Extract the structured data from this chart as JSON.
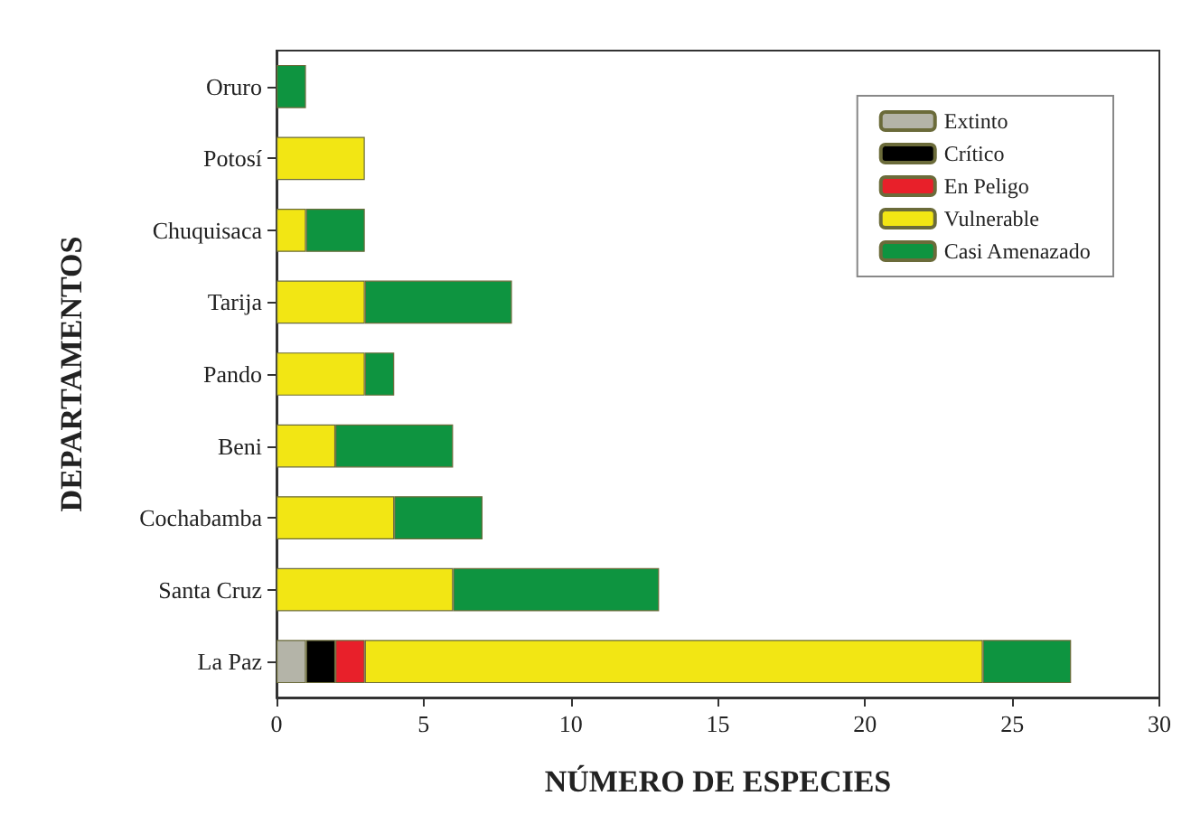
{
  "chart_data": {
    "type": "bar",
    "orientation": "horizontal",
    "stacked": true,
    "xlabel": "NÚMERO DE ESPECIES",
    "ylabel": "DEPARTAMENTOS",
    "categories": [
      "Oruro",
      "Potosí",
      "Chuquisaca",
      "Tarija",
      "Pando",
      "Beni",
      "Cochabamba",
      "Santa Cruz",
      "La Paz"
    ],
    "series": [
      {
        "name": "Extinto",
        "color": "#b4b4a8",
        "values": [
          null,
          null,
          null,
          null,
          null,
          null,
          null,
          null,
          1
        ]
      },
      {
        "name": "Crítico",
        "color": "#000000",
        "values": [
          null,
          null,
          null,
          null,
          null,
          null,
          null,
          null,
          1
        ]
      },
      {
        "name": "En Peligo",
        "color": "#e8202a",
        "values": [
          null,
          null,
          null,
          null,
          null,
          null,
          null,
          null,
          1
        ]
      },
      {
        "name": "Vulnerable",
        "color": "#f2e614",
        "values": [
          null,
          3,
          1,
          3,
          3,
          2,
          4,
          6,
          21
        ]
      },
      {
        "name": "Casi Amenazado",
        "color": "#0e9440",
        "values": [
          1,
          null,
          2,
          5,
          1,
          4,
          3,
          7,
          3
        ]
      }
    ],
    "xlim": [
      0,
      30
    ],
    "xticks": [
      0,
      5,
      10,
      15,
      20,
      25,
      30
    ],
    "legend": "top right",
    "grid": false
  }
}
